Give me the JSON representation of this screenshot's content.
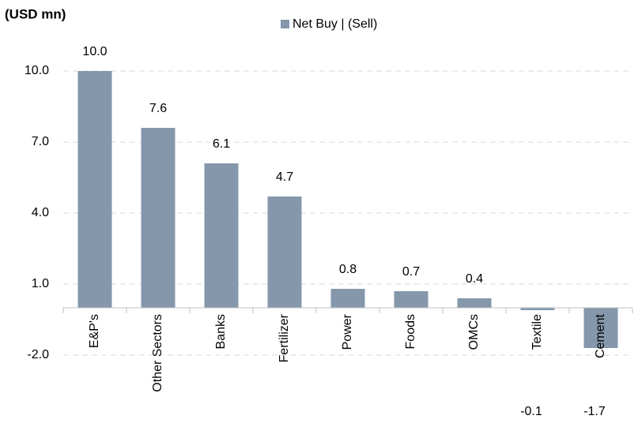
{
  "chart_data": {
    "type": "bar",
    "title": "(USD mn)",
    "categories": [
      "E&P's",
      "Other Sectors",
      "Banks",
      "Fertilizer",
      "Power",
      "Foods",
      "OMCs",
      "Textile",
      "Cement"
    ],
    "series": [
      {
        "name": "Net Buy | (Sell)",
        "color": "#8497ab",
        "values": [
          10.0,
          7.6,
          6.1,
          4.7,
          0.8,
          0.7,
          0.4,
          -0.1,
          -1.7
        ],
        "value_labels": [
          "10.0",
          "7.6",
          "6.1",
          "4.7",
          "0.8",
          "0.7",
          "0.4",
          "-0.1",
          "-1.7"
        ]
      }
    ],
    "ylim": [
      -2,
      11
    ],
    "yticks": [
      {
        "value": -2,
        "label": "-2.0"
      },
      {
        "value": 1,
        "label": "1.0"
      },
      {
        "value": 4,
        "label": "4.0"
      },
      {
        "value": 7,
        "label": "7.0"
      },
      {
        "value": 10,
        "label": "10.0"
      }
    ],
    "grid": true,
    "legend": "top"
  }
}
